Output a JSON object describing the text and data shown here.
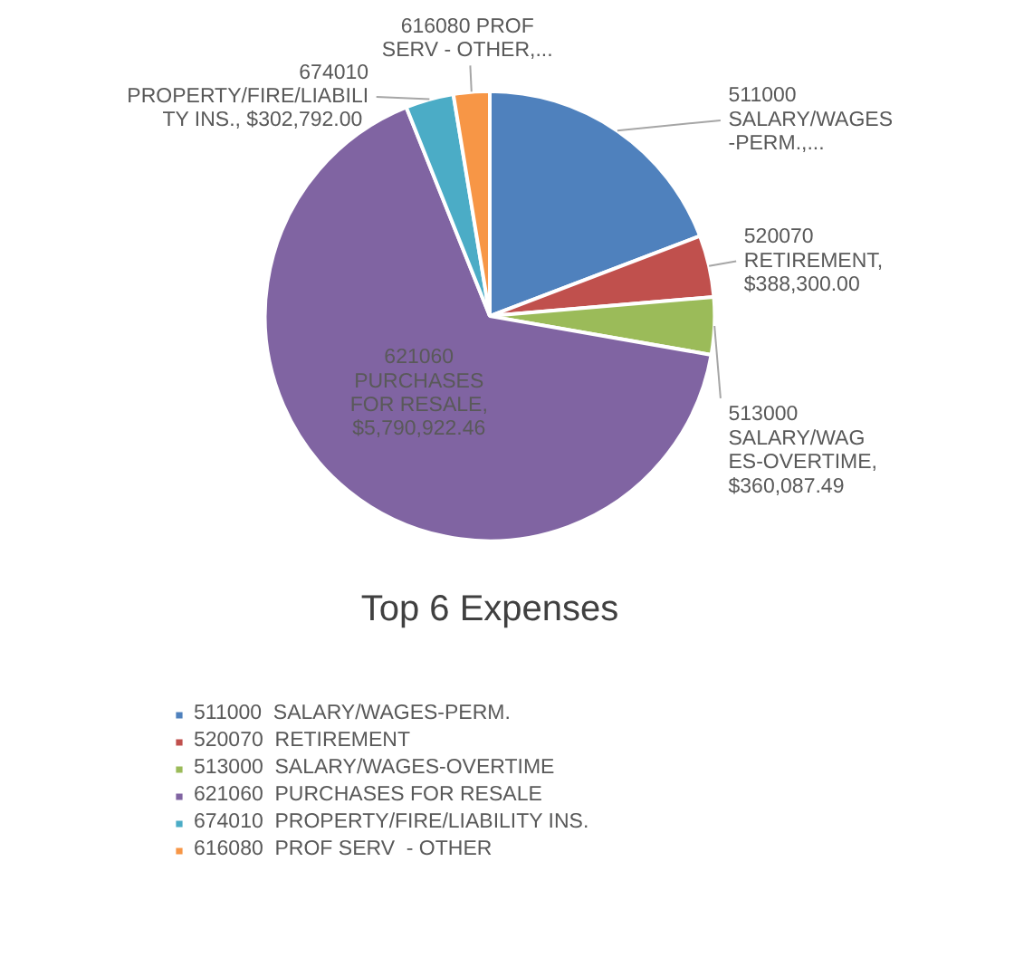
{
  "chart_data": {
    "type": "pie",
    "title": "Top 6 Expenses",
    "categories": [
      "511000  SALARY/WAGES-PERM.",
      "520070  RETIREMENT",
      "513000  SALARY/WAGES-OVERTIME",
      "621060  PURCHASES FOR RESALE",
      "674010  PROPERTY/FIRE/LIABILITY INS.",
      "616080  PROF SERV  - OTHER"
    ],
    "values": [
      1680000,
      388300.0,
      360087.49,
      5790922.46,
      302792.0,
      227000
    ],
    "colors": [
      "#4f81bd",
      "#c0504d",
      "#9bbb59",
      "#8064a2",
      "#4bacc6",
      "#f79646"
    ],
    "value_labels": [
      "511000\nSALARY/WAGES\n-PERM.,...",
      "520070\nRETIREMENT,\n$388,300.00",
      "513000\nSALARY/WAG\nES-OVERTIME,\n$360,087.49",
      "621060\nPURCHASES\nFOR RESALE,\n$5,790,922.46",
      "674010\nPROPERTY/FIRE/LIABILI\nTY INS.,  $302,792.00",
      "616080  PROF\nSERV  - OTHER,..."
    ],
    "legend": "bottom"
  }
}
